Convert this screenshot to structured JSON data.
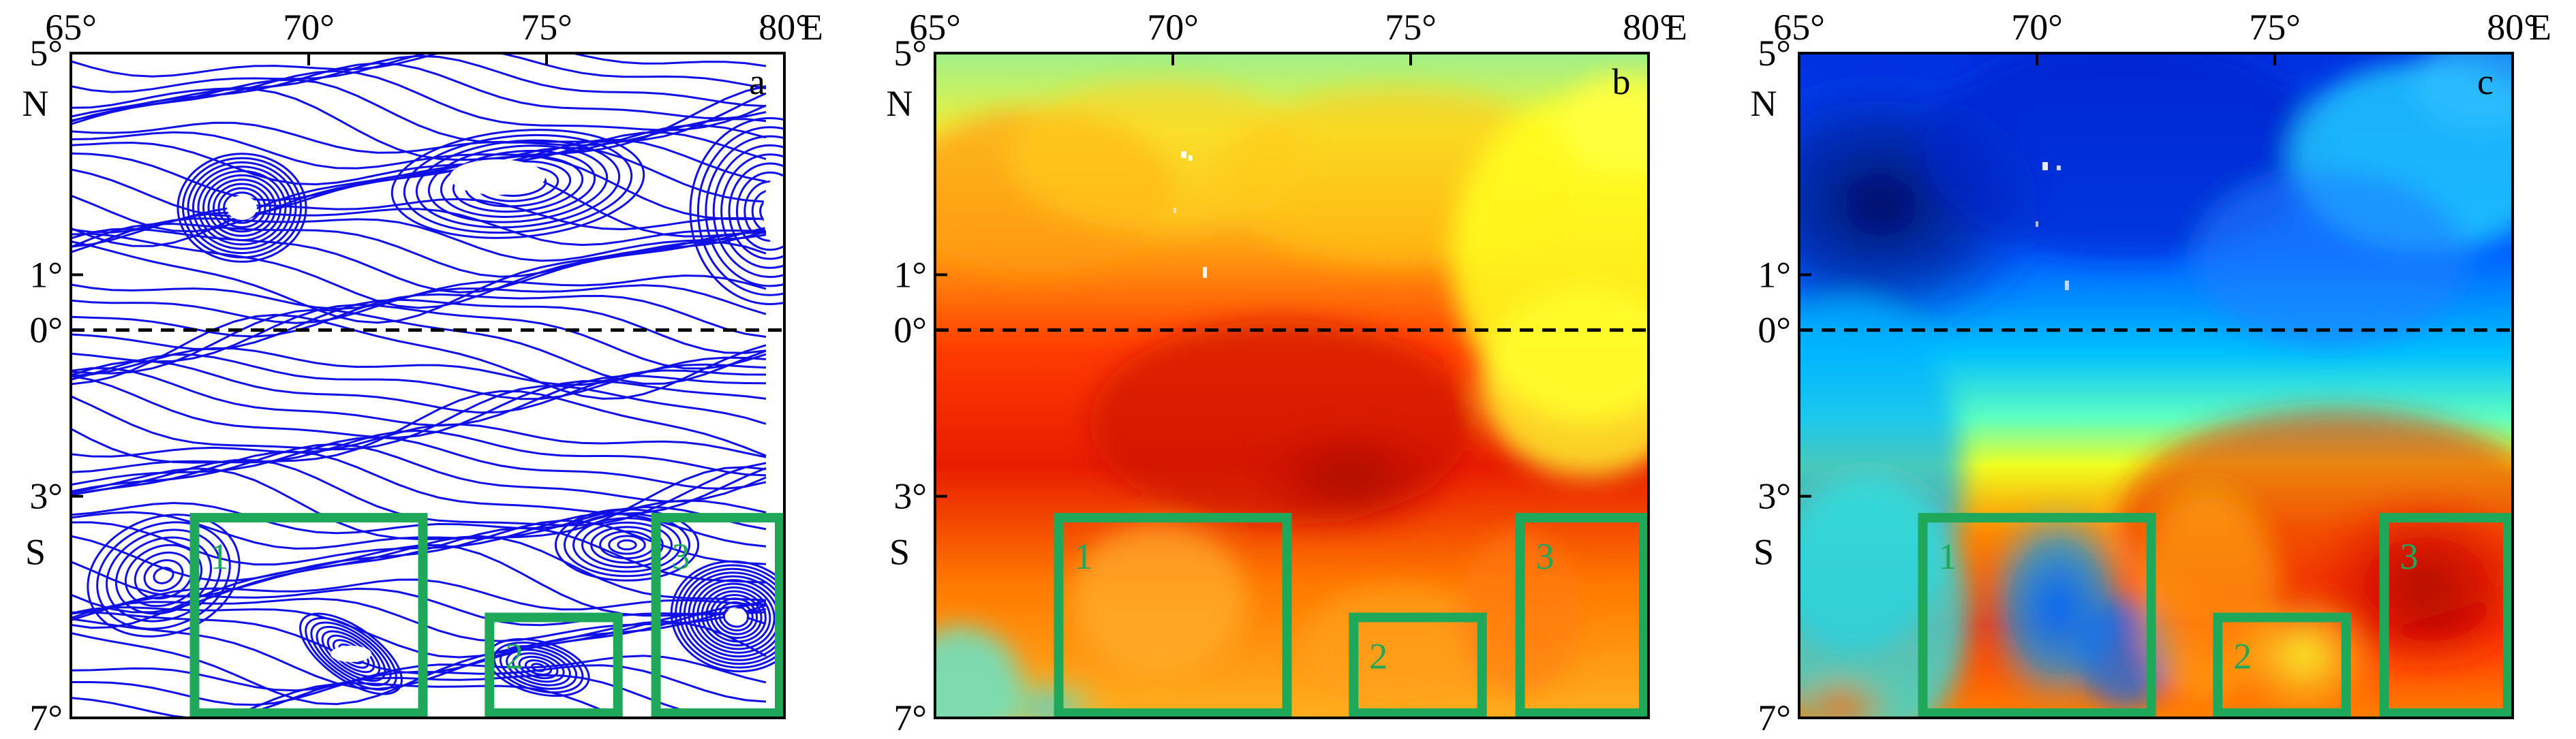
{
  "figure": {
    "x_ticks": [
      {
        "value": 65,
        "label": "65°"
      },
      {
        "value": 70,
        "label": "70°"
      },
      {
        "value": 75,
        "label": "75°"
      },
      {
        "value": 80,
        "label": "80°"
      }
    ],
    "x_unit": "E",
    "y_ticks": [
      {
        "value": 5,
        "label": "5°"
      },
      {
        "value": 1,
        "label": "1°"
      },
      {
        "value": 0,
        "label": "0°"
      },
      {
        "value": -3,
        "label": "3°"
      },
      {
        "value": -7,
        "label": "7°"
      }
    ],
    "hemisphere_labels": {
      "north": "N",
      "south": "S"
    },
    "lon_range": [
      65,
      80
    ],
    "lat_range": [
      -7,
      5
    ],
    "equator_line": "dashed",
    "region_box_color": "#1fa85a",
    "streamline_color": "#1010e6",
    "colormap": [
      "#0a1a8c",
      "#0040ff",
      "#00b8ff",
      "#4dffc8",
      "#ffff00",
      "#ff8c00",
      "#e81c00",
      "#7a0000"
    ]
  },
  "panels": [
    {
      "id": "a",
      "letter": "a",
      "kind": "streamlines"
    },
    {
      "id": "b",
      "letter": "b",
      "kind": "field-warm"
    },
    {
      "id": "c",
      "letter": "c",
      "kind": "field-contrast"
    }
  ],
  "region_boxes": [
    {
      "label": "1",
      "lon": [
        67.5,
        72.5
      ],
      "lat": [
        -7,
        -3.3
      ]
    },
    {
      "label": "2",
      "lon": [
        73.7,
        76.6
      ],
      "lat": [
        -7,
        -5.1
      ]
    },
    {
      "label": "3",
      "lon": [
        77.2,
        80
      ],
      "lat": [
        -7,
        -3.3
      ]
    }
  ]
}
